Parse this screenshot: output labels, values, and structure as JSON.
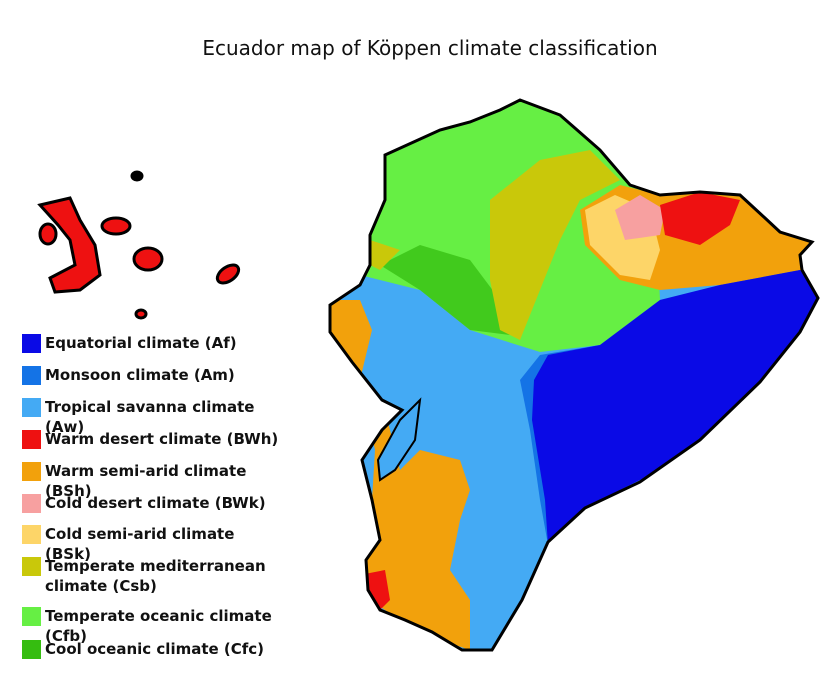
{
  "title": "Ecuador map of Köppen climate classification",
  "legend": [
    {
      "label": "Equatorial climate (Af)",
      "color": "#0a0ae6"
    },
    {
      "label": "Monsoon climate (Am)",
      "color": "#1473e6"
    },
    {
      "label": "Tropical savanna climate (Aw)",
      "color": "#44aaf4"
    },
    {
      "label": "Warm desert climate (BWh)",
      "color": "#ee1111"
    },
    {
      "label": "Warm semi-arid climate (BSh)",
      "color": "#f2a10c"
    },
    {
      "label": "Cold desert climate (BWk)",
      "color": "#f7a0a0"
    },
    {
      "label": "Cold semi-arid climate (BSk)",
      "color": "#fdd568"
    },
    {
      "label": "Temperate mediterranean climate (Csb)",
      "color": "#c9c80a"
    },
    {
      "label": "Temperate oceanic climate (Cfb)",
      "color": "#66ef44"
    },
    {
      "label": "Cool oceanic climate (Cfc)",
      "color": "#35bd10"
    }
  ]
}
